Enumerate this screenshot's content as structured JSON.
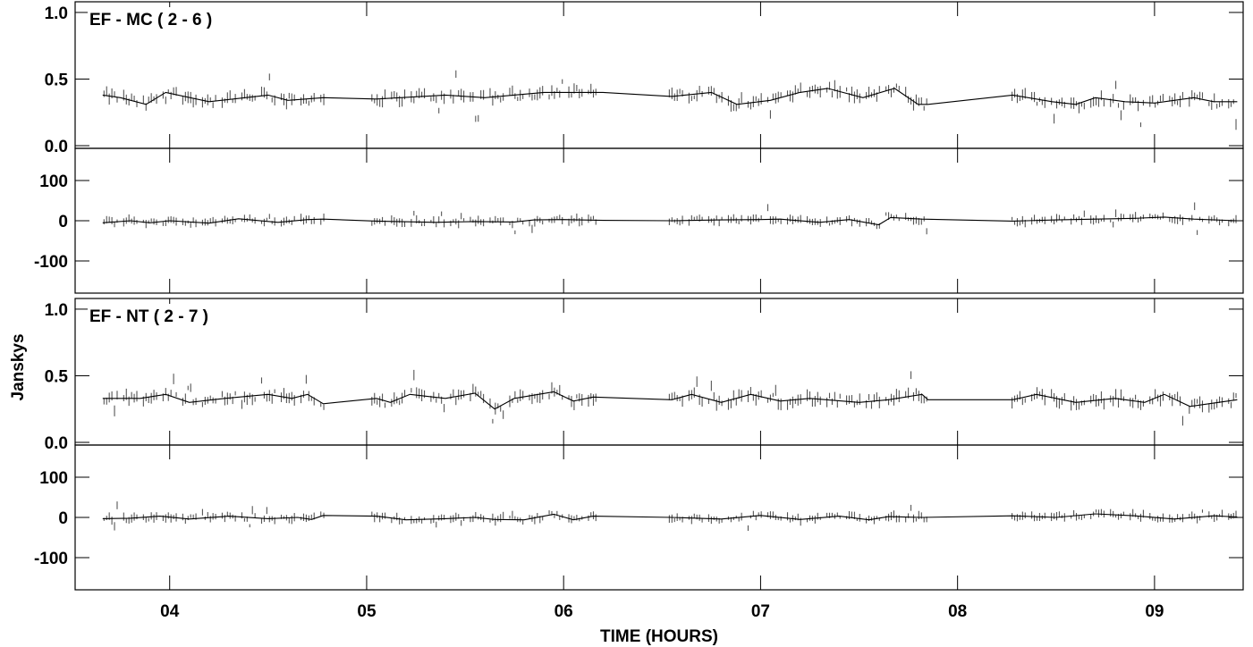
{
  "chart_data": {
    "type": "scatter",
    "xlabel": "TIME (HOURS)",
    "ylabel": "Janskys",
    "xlim": [
      3.52,
      9.45
    ],
    "x_ticks": [
      "04",
      "05",
      "06",
      "07",
      "08",
      "09"
    ],
    "x_tick_values": [
      4,
      5,
      6,
      7,
      8,
      9
    ],
    "panels": [
      {
        "title": "EF - MC ( 2 - 6 )",
        "ylim": [
          -0.02,
          1.08
        ],
        "y_ticks": [
          "1.0",
          "0.5",
          "0.0"
        ],
        "y_tick_values": [
          1.0,
          0.5,
          0.0
        ],
        "kind": "amplitude",
        "base": 0.37,
        "model_line": [
          [
            3.66,
            0.38
          ],
          [
            3.75,
            0.36
          ],
          [
            3.88,
            0.31
          ],
          [
            3.98,
            0.4
          ],
          [
            4.2,
            0.33
          ],
          [
            4.5,
            0.38
          ],
          [
            4.6,
            0.34
          ],
          [
            4.78,
            0.36
          ],
          [
            5.05,
            0.35
          ],
          [
            5.4,
            0.38
          ],
          [
            5.6,
            0.36
          ],
          [
            5.9,
            0.4
          ],
          [
            6.2,
            0.4
          ],
          [
            6.55,
            0.37
          ],
          [
            6.75,
            0.4
          ],
          [
            6.88,
            0.31
          ],
          [
            7.05,
            0.34
          ],
          [
            7.2,
            0.4
          ],
          [
            7.34,
            0.43
          ],
          [
            7.52,
            0.36
          ],
          [
            7.68,
            0.43
          ],
          [
            7.8,
            0.31
          ],
          [
            7.85,
            0.31
          ],
          [
            8.28,
            0.38
          ],
          [
            8.48,
            0.33
          ],
          [
            8.6,
            0.31
          ],
          [
            8.7,
            0.36
          ],
          [
            8.85,
            0.33
          ],
          [
            9.0,
            0.32
          ],
          [
            9.2,
            0.36
          ],
          [
            9.3,
            0.33
          ],
          [
            9.42,
            0.33
          ]
        ]
      },
      {
        "title": "",
        "ylim": [
          -180,
          180
        ],
        "y_ticks": [
          "100",
          "0",
          "-100"
        ],
        "y_tick_values": [
          100,
          0,
          -100
        ],
        "kind": "phase",
        "base": 0,
        "model_line": [
          [
            3.66,
            -5
          ],
          [
            3.8,
            0
          ],
          [
            3.9,
            -5
          ],
          [
            4.0,
            0
          ],
          [
            4.2,
            -6
          ],
          [
            4.35,
            5
          ],
          [
            4.55,
            -4
          ],
          [
            4.7,
            3
          ],
          [
            4.78,
            4
          ],
          [
            5.05,
            -1
          ],
          [
            5.35,
            -4
          ],
          [
            5.55,
            -2
          ],
          [
            5.75,
            -3
          ],
          [
            5.85,
            2
          ],
          [
            6.0,
            3
          ],
          [
            6.2,
            1
          ],
          [
            6.55,
            0
          ],
          [
            6.8,
            2
          ],
          [
            7.0,
            3
          ],
          [
            7.1,
            4
          ],
          [
            7.3,
            -4
          ],
          [
            7.45,
            3
          ],
          [
            7.6,
            -10
          ],
          [
            7.66,
            8
          ],
          [
            7.82,
            4
          ],
          [
            8.28,
            -1
          ],
          [
            8.5,
            2
          ],
          [
            8.7,
            4
          ],
          [
            8.9,
            6
          ],
          [
            9.05,
            9
          ],
          [
            9.2,
            4
          ],
          [
            9.42,
            0
          ]
        ]
      },
      {
        "title": "EF - NT ( 2 - 7 )",
        "ylim": [
          -0.02,
          1.08
        ],
        "y_ticks": [
          "1.0",
          "0.5",
          "0.0"
        ],
        "y_tick_values": [
          1.0,
          0.5,
          0.0
        ],
        "kind": "amplitude",
        "base": 0.33,
        "model_line": [
          [
            3.66,
            0.33
          ],
          [
            3.85,
            0.33
          ],
          [
            3.98,
            0.36
          ],
          [
            4.1,
            0.3
          ],
          [
            4.28,
            0.33
          ],
          [
            4.5,
            0.36
          ],
          [
            4.62,
            0.33
          ],
          [
            4.7,
            0.36
          ],
          [
            4.78,
            0.29
          ],
          [
            5.05,
            0.33
          ],
          [
            5.12,
            0.3
          ],
          [
            5.22,
            0.36
          ],
          [
            5.4,
            0.33
          ],
          [
            5.55,
            0.37
          ],
          [
            5.65,
            0.25
          ],
          [
            5.75,
            0.33
          ],
          [
            5.95,
            0.38
          ],
          [
            6.05,
            0.31
          ],
          [
            6.15,
            0.34
          ],
          [
            6.55,
            0.32
          ],
          [
            6.65,
            0.36
          ],
          [
            6.8,
            0.3
          ],
          [
            6.95,
            0.36
          ],
          [
            7.1,
            0.31
          ],
          [
            7.25,
            0.33
          ],
          [
            7.5,
            0.3
          ],
          [
            7.65,
            0.32
          ],
          [
            7.82,
            0.36
          ],
          [
            7.85,
            0.32
          ],
          [
            8.28,
            0.32
          ],
          [
            8.4,
            0.36
          ],
          [
            8.6,
            0.3
          ],
          [
            8.8,
            0.33
          ],
          [
            8.95,
            0.3
          ],
          [
            9.05,
            0.36
          ],
          [
            9.18,
            0.27
          ],
          [
            9.42,
            0.32
          ]
        ]
      },
      {
        "title": "",
        "ylim": [
          -180,
          180
        ],
        "y_ticks": [
          "100",
          "0",
          "-100"
        ],
        "y_tick_values": [
          100,
          0,
          -100
        ],
        "kind": "phase",
        "base": 0,
        "model_line": [
          [
            3.66,
            -3
          ],
          [
            3.8,
            -2
          ],
          [
            3.95,
            3
          ],
          [
            4.1,
            -4
          ],
          [
            4.3,
            3
          ],
          [
            4.5,
            -3
          ],
          [
            4.65,
            0
          ],
          [
            4.72,
            -5
          ],
          [
            4.78,
            5
          ],
          [
            5.05,
            3
          ],
          [
            5.2,
            -6
          ],
          [
            5.4,
            -3
          ],
          [
            5.55,
            0
          ],
          [
            5.65,
            -5
          ],
          [
            5.8,
            -6
          ],
          [
            5.95,
            8
          ],
          [
            6.05,
            -6
          ],
          [
            6.15,
            3
          ],
          [
            6.55,
            0
          ],
          [
            6.8,
            -4
          ],
          [
            7.0,
            5
          ],
          [
            7.2,
            -5
          ],
          [
            7.4,
            3
          ],
          [
            7.55,
            -6
          ],
          [
            7.65,
            2
          ],
          [
            7.82,
            0
          ],
          [
            8.28,
            4
          ],
          [
            8.5,
            0
          ],
          [
            8.7,
            9
          ],
          [
            8.9,
            4
          ],
          [
            9.1,
            -4
          ],
          [
            9.3,
            4
          ],
          [
            9.42,
            1
          ]
        ]
      }
    ],
    "scan_blocks": [
      [
        3.66,
        3.74
      ],
      [
        3.76,
        3.84
      ],
      [
        3.86,
        3.94
      ],
      [
        3.96,
        4.04
      ],
      [
        4.06,
        4.14
      ],
      [
        4.16,
        4.24
      ],
      [
        4.26,
        4.34
      ],
      [
        4.36,
        4.44
      ],
      [
        4.46,
        4.54
      ],
      [
        4.56,
        4.64
      ],
      [
        4.66,
        4.74
      ],
      [
        4.76,
        4.79
      ],
      [
        5.02,
        5.1
      ],
      [
        5.12,
        5.2
      ],
      [
        5.22,
        5.3
      ],
      [
        5.32,
        5.4
      ],
      [
        5.42,
        5.5
      ],
      [
        5.52,
        5.6
      ],
      [
        5.62,
        5.7
      ],
      [
        5.72,
        5.8
      ],
      [
        5.82,
        5.9
      ],
      [
        5.92,
        6.0
      ],
      [
        6.02,
        6.1
      ],
      [
        6.12,
        6.17
      ],
      [
        6.53,
        6.61
      ],
      [
        6.63,
        6.71
      ],
      [
        6.73,
        6.81
      ],
      [
        6.83,
        6.91
      ],
      [
        6.93,
        7.01
      ],
      [
        7.03,
        7.11
      ],
      [
        7.13,
        7.21
      ],
      [
        7.23,
        7.31
      ],
      [
        7.33,
        7.41
      ],
      [
        7.43,
        7.51
      ],
      [
        7.53,
        7.61
      ],
      [
        7.63,
        7.71
      ],
      [
        7.73,
        7.85
      ],
      [
        8.27,
        8.35
      ],
      [
        8.37,
        8.45
      ],
      [
        8.47,
        8.55
      ],
      [
        8.57,
        8.65
      ],
      [
        8.67,
        8.75
      ],
      [
        8.77,
        8.85
      ],
      [
        8.87,
        8.95
      ],
      [
        8.97,
        9.05
      ],
      [
        9.07,
        9.15
      ],
      [
        9.17,
        9.25
      ],
      [
        9.27,
        9.35
      ],
      [
        9.37,
        9.42
      ]
    ]
  },
  "colors": {
    "axis": "#000000",
    "data": "#555555",
    "model": "#000000"
  }
}
